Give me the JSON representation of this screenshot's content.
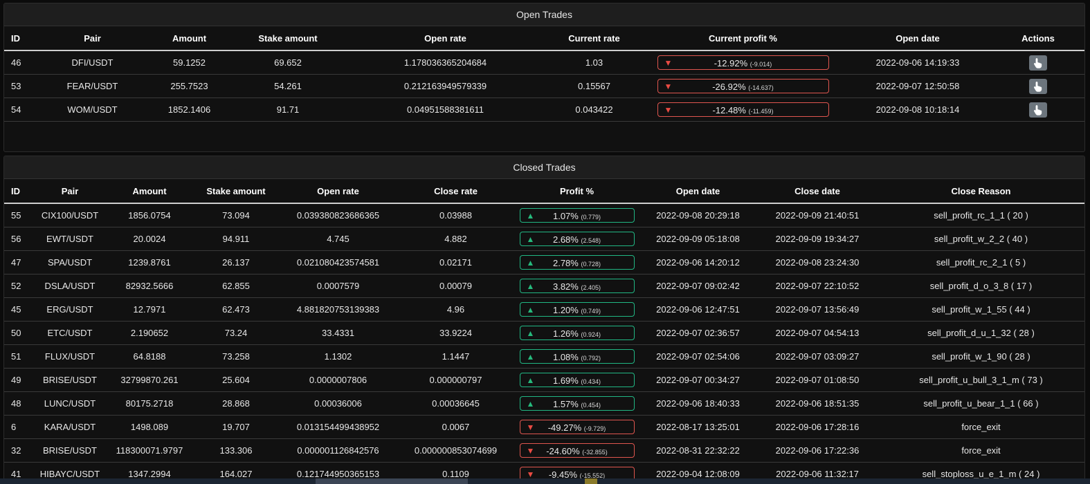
{
  "open_trades": {
    "title": "Open Trades",
    "headers": [
      "ID",
      "Pair",
      "Amount",
      "Stake amount",
      "Open rate",
      "Current rate",
      "Current profit %",
      "Open date",
      "Actions"
    ],
    "rows": [
      {
        "id": "46",
        "pair": "DFI/USDT",
        "amount": "59.1252",
        "stake": "69.652",
        "open_rate": "1.178036365204684",
        "current_rate": "1.03",
        "profit_pct": "-12.92%",
        "profit_abs": "(-9.014)",
        "open_date": "2022-09-06 14:19:33",
        "direction": "down"
      },
      {
        "id": "53",
        "pair": "FEAR/USDT",
        "amount": "255.7523",
        "stake": "54.261",
        "open_rate": "0.212163949579339",
        "current_rate": "0.15567",
        "profit_pct": "-26.92%",
        "profit_abs": "(-14.637)",
        "open_date": "2022-09-07 12:50:58",
        "direction": "down"
      },
      {
        "id": "54",
        "pair": "WOM/USDT",
        "amount": "1852.1406",
        "stake": "91.71",
        "open_rate": "0.04951588381611",
        "current_rate": "0.043422",
        "profit_pct": "-12.48%",
        "profit_abs": "(-11.459)",
        "open_date": "2022-09-08 10:18:14",
        "direction": "down"
      }
    ]
  },
  "closed_trades": {
    "title": "Closed Trades",
    "headers": [
      "ID",
      "Pair",
      "Amount",
      "Stake amount",
      "Open rate",
      "Close rate",
      "Profit %",
      "Open date",
      "Close date",
      "Close Reason"
    ],
    "rows": [
      {
        "id": "55",
        "pair": "CIX100/USDT",
        "amount": "1856.0754",
        "stake": "73.094",
        "open_rate": "0.039380823686365",
        "close_rate": "0.03988",
        "profit_pct": "1.07%",
        "profit_abs": "(0.779)",
        "open_date": "2022-09-08 20:29:18",
        "close_date": "2022-09-09 21:40:51",
        "reason": "sell_profit_rc_1_1 ( 20 )",
        "direction": "up"
      },
      {
        "id": "56",
        "pair": "EWT/USDT",
        "amount": "20.0024",
        "stake": "94.911",
        "open_rate": "4.745",
        "close_rate": "4.882",
        "profit_pct": "2.68%",
        "profit_abs": "(2.548)",
        "open_date": "2022-09-09 05:18:08",
        "close_date": "2022-09-09 19:34:27",
        "reason": "sell_profit_w_2_2 ( 40 )",
        "direction": "up"
      },
      {
        "id": "47",
        "pair": "SPA/USDT",
        "amount": "1239.8761",
        "stake": "26.137",
        "open_rate": "0.021080423574581",
        "close_rate": "0.02171",
        "profit_pct": "2.78%",
        "profit_abs": "(0.728)",
        "open_date": "2022-09-06 14:20:12",
        "close_date": "2022-09-08 23:24:30",
        "reason": "sell_profit_rc_2_1 ( 5 )",
        "direction": "up"
      },
      {
        "id": "52",
        "pair": "DSLA/USDT",
        "amount": "82932.5666",
        "stake": "62.855",
        "open_rate": "0.0007579",
        "close_rate": "0.00079",
        "profit_pct": "3.82%",
        "profit_abs": "(2.405)",
        "open_date": "2022-09-07 09:02:42",
        "close_date": "2022-09-07 22:10:52",
        "reason": "sell_profit_d_o_3_8 ( 17 )",
        "direction": "up"
      },
      {
        "id": "45",
        "pair": "ERG/USDT",
        "amount": "12.7971",
        "stake": "62.473",
        "open_rate": "4.881820753139383",
        "close_rate": "4.96",
        "profit_pct": "1.20%",
        "profit_abs": "(0.749)",
        "open_date": "2022-09-06 12:47:51",
        "close_date": "2022-09-07 13:56:49",
        "reason": "sell_profit_w_1_55 ( 44 )",
        "direction": "up"
      },
      {
        "id": "50",
        "pair": "ETC/USDT",
        "amount": "2.190652",
        "stake": "73.24",
        "open_rate": "33.4331",
        "close_rate": "33.9224",
        "profit_pct": "1.26%",
        "profit_abs": "(0.924)",
        "open_date": "2022-09-07 02:36:57",
        "close_date": "2022-09-07 04:54:13",
        "reason": "sell_profit_d_u_1_32 ( 28 )",
        "direction": "up"
      },
      {
        "id": "51",
        "pair": "FLUX/USDT",
        "amount": "64.8188",
        "stake": "73.258",
        "open_rate": "1.1302",
        "close_rate": "1.1447",
        "profit_pct": "1.08%",
        "profit_abs": "(0.792)",
        "open_date": "2022-09-07 02:54:06",
        "close_date": "2022-09-07 03:09:27",
        "reason": "sell_profit_w_1_90 ( 28 )",
        "direction": "up"
      },
      {
        "id": "49",
        "pair": "BRISE/USDT",
        "amount": "32799870.261",
        "stake": "25.604",
        "open_rate": "0.0000007806",
        "close_rate": "0.000000797",
        "profit_pct": "1.69%",
        "profit_abs": "(0.434)",
        "open_date": "2022-09-07 00:34:27",
        "close_date": "2022-09-07 01:08:50",
        "reason": "sell_profit_u_bull_3_1_m ( 73 )",
        "direction": "up"
      },
      {
        "id": "48",
        "pair": "LUNC/USDT",
        "amount": "80175.2718",
        "stake": "28.868",
        "open_rate": "0.00036006",
        "close_rate": "0.00036645",
        "profit_pct": "1.57%",
        "profit_abs": "(0.454)",
        "open_date": "2022-09-06 18:40:33",
        "close_date": "2022-09-06 18:51:35",
        "reason": "sell_profit_u_bear_1_1 ( 66 )",
        "direction": "up"
      },
      {
        "id": "6",
        "pair": "KARA/USDT",
        "amount": "1498.089",
        "stake": "19.707",
        "open_rate": "0.013154499438952",
        "close_rate": "0.0067",
        "profit_pct": "-49.27%",
        "profit_abs": "(-9.729)",
        "open_date": "2022-08-17 13:25:01",
        "close_date": "2022-09-06 17:28:16",
        "reason": "force_exit",
        "direction": "down"
      },
      {
        "id": "32",
        "pair": "BRISE/USDT",
        "amount": "118300071.9797",
        "stake": "133.306",
        "open_rate": "0.000001126842576",
        "close_rate": "0.000000853074699",
        "profit_pct": "-24.60%",
        "profit_abs": "(-32.855)",
        "open_date": "2022-08-31 22:32:22",
        "close_date": "2022-09-06 17:22:36",
        "reason": "force_exit",
        "direction": "down"
      },
      {
        "id": "41",
        "pair": "HIBAYC/USDT",
        "amount": "1347.2994",
        "stake": "164.027",
        "open_rate": "0.121744950365153",
        "close_rate": "0.1109",
        "profit_pct": "-9.45%",
        "profit_abs": "(-15.552)",
        "open_date": "2022-09-04 12:08:09",
        "close_date": "2022-09-06 11:32:17",
        "reason": "sell_stoploss_u_e_1_m ( 24 )",
        "direction": "down"
      }
    ]
  },
  "icons": {
    "up": "▲",
    "down": "▼",
    "action": "pointer-hand-icon"
  },
  "colors": {
    "gain": "#21b884",
    "loss": "#e0564f",
    "action_button": "#6c757d"
  }
}
